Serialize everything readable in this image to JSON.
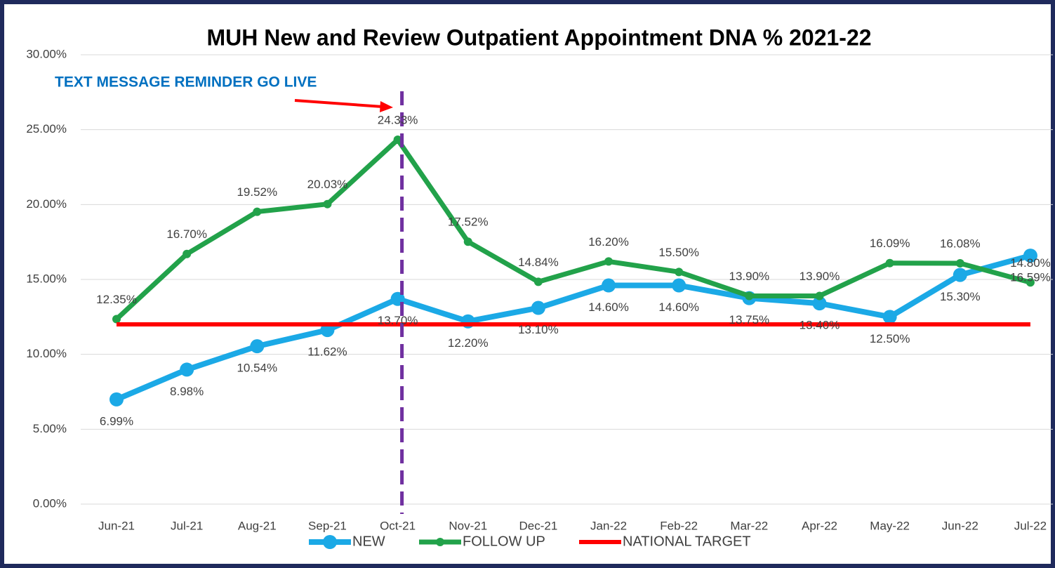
{
  "chart_data": {
    "type": "line",
    "title": "MUH New and Review Outpatient Appointment DNA % 2021-22",
    "annotation": "TEXT MESSAGE REMINDER GO LIVE",
    "categories": [
      "Jun-21",
      "Jul-21",
      "Aug-21",
      "Sep-21",
      "Oct-21",
      "Nov-21",
      "Dec-21",
      "Jan-22",
      "Feb-22",
      "Mar-22",
      "Apr-22",
      "May-22",
      "Jun-22",
      "Jul-22"
    ],
    "series": [
      {
        "name": "NEW",
        "color": "#1ba9e6",
        "marker": true,
        "values": [
          6.99,
          8.98,
          10.54,
          11.62,
          13.7,
          12.2,
          13.1,
          14.6,
          14.6,
          13.75,
          13.4,
          12.5,
          15.3,
          16.59
        ],
        "value_labels": [
          "6.99%",
          "8.98%",
          "10.54%",
          "11.62%",
          "13.70%",
          "12.20%",
          "13.10%",
          "14.60%",
          "14.60%",
          "13.75%",
          "13.40%",
          "12.50%",
          "15.30%",
          "16.59%"
        ]
      },
      {
        "name": "FOLLOW UP",
        "color": "#22a24a",
        "marker": true,
        "values": [
          12.35,
          16.7,
          19.52,
          20.03,
          24.33,
          17.52,
          14.84,
          16.2,
          15.5,
          13.9,
          13.9,
          16.09,
          16.08,
          14.8
        ],
        "value_labels": [
          "12.35%",
          "16.70%",
          "19.52%",
          "20.03%",
          "24.33%",
          "17.52%",
          "14.84%",
          "16.20%",
          "15.50%",
          "13.90%",
          "13.90%",
          "16.09%",
          "16.08%",
          "14.80%"
        ]
      },
      {
        "name": "NATIONAL TARGET",
        "color": "#ff0000",
        "marker": false,
        "values": [
          12,
          12,
          12,
          12,
          12,
          12,
          12,
          12,
          12,
          12,
          12,
          12,
          12,
          12
        ]
      }
    ],
    "ylim": [
      0,
      30
    ],
    "yticks": [
      {
        "value": 0,
        "label": "0.00%"
      },
      {
        "value": 5,
        "label": "5.00%"
      },
      {
        "value": 10,
        "label": "10.00%"
      },
      {
        "value": 15,
        "label": "15.00%"
      },
      {
        "value": 20,
        "label": "20.00%"
      },
      {
        "value": 25,
        "label": "25.00%"
      },
      {
        "value": 30,
        "label": "30.00%"
      }
    ],
    "grid": true,
    "legend": "bottom"
  }
}
